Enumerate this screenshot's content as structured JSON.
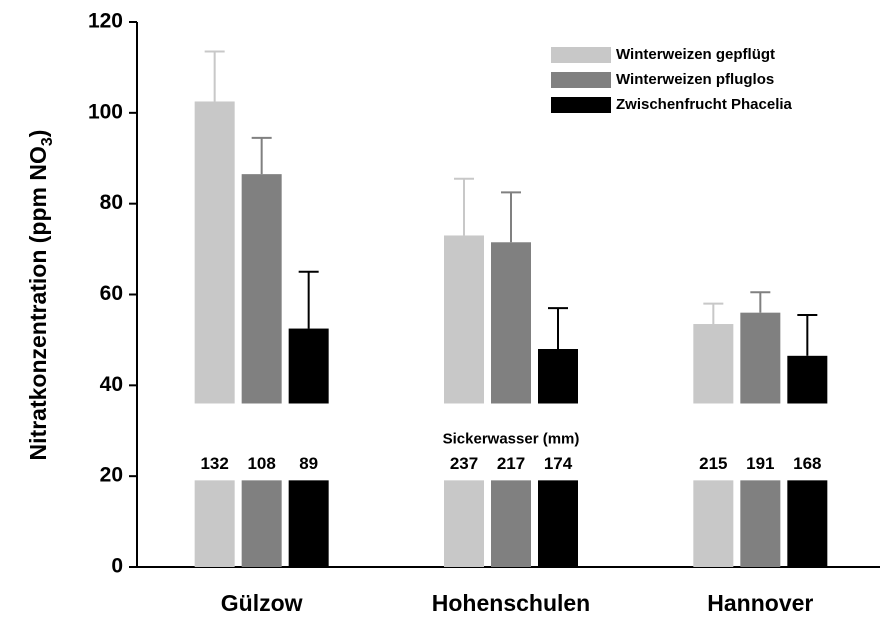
{
  "chart_data": {
    "type": "bar",
    "ylabel": {
      "text": "Nitratkonzentration (ppm NO",
      "sub": "3",
      "end": ")"
    },
    "categories": [
      "Gülzow",
      "Hohenschulen",
      "Hannover"
    ],
    "series": [
      {
        "name": "Winterweizen gepflügt",
        "color": "#c8c8c8",
        "values": [
          102.5,
          73,
          53.5
        ],
        "errors": [
          11,
          12.5,
          4.5
        ],
        "sickerwasser": [
          132,
          237,
          215
        ]
      },
      {
        "name": "Winterweizen pfluglos",
        "color": "#808080",
        "values": [
          86.5,
          71.5,
          56
        ],
        "errors": [
          8,
          11,
          4.5
        ],
        "sickerwasser": [
          108,
          217,
          191
        ]
      },
      {
        "name": "Zwischenfrucht Phacelia",
        "color": "#000000",
        "values": [
          52.5,
          48,
          46.5
        ],
        "errors": [
          12.5,
          9,
          9
        ],
        "sickerwasser": [
          89,
          174,
          168
        ]
      }
    ],
    "sickerwasser_label": "Sickerwasser (mm)",
    "ylim": [
      0,
      120
    ],
    "yticks": [
      0,
      20,
      40,
      60,
      80,
      100,
      120
    ],
    "legend": "top-right"
  }
}
